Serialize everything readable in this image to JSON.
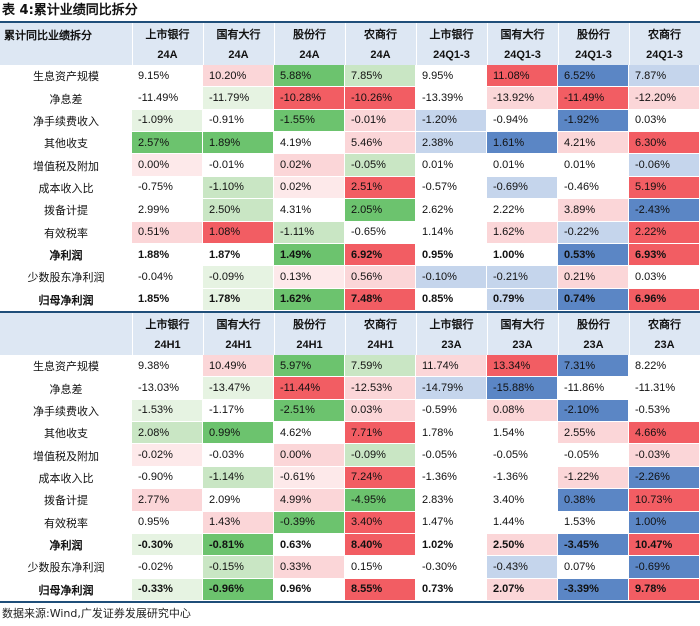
{
  "title": "表 4:累计业绩同比拆分",
  "corner_label": "累计同比业绩拆分",
  "source": "数据来源:Wind,广发证券发展研究中心",
  "colors": {
    "header_bg": "#dde7f3",
    "rule": "#1f4e79",
    "red": "#f25d63",
    "light_red": "#fbd6d8",
    "faint_red": "#fde9ea",
    "green": "#6cc36e",
    "light_green": "#c9e6c4",
    "faint_green": "#e6f3e2",
    "blue": "#5b86c5",
    "light_blue": "#c5d5ec",
    "white": "#ffffff"
  },
  "sections": [
    {
      "banks": [
        "上市银行",
        "国有大行",
        "股份行",
        "农商行",
        "上市银行",
        "国有大行",
        "股份行",
        "农商行"
      ],
      "periods": [
        "24A",
        "24A",
        "24A",
        "24A",
        "24Q1-3",
        "24Q1-3",
        "24Q1-3",
        "24Q1-3"
      ],
      "rows": [
        {
          "label": "生息资产规模",
          "bold": false,
          "values": [
            "9.15%",
            "10.20%",
            "5.88%",
            "7.85%",
            "9.95%",
            "11.08%",
            "6.52%",
            "7.87%"
          ],
          "colors": [
            "white",
            "light_red",
            "green",
            "light_green",
            "white",
            "red",
            "blue",
            "light_blue"
          ]
        },
        {
          "label": "净息差",
          "bold": false,
          "values": [
            "-11.49%",
            "-11.79%",
            "-10.28%",
            "-10.26%",
            "-13.39%",
            "-13.92%",
            "-11.49%",
            "-12.20%"
          ],
          "colors": [
            "white",
            "faint_green",
            "red",
            "red",
            "white",
            "light_red",
            "red",
            "light_red"
          ]
        },
        {
          "label": "净手续费收入",
          "bold": false,
          "values": [
            "-1.09%",
            "-0.91%",
            "-1.55%",
            "-0.01%",
            "-1.20%",
            "-0.94%",
            "-1.92%",
            "0.03%"
          ],
          "colors": [
            "faint_green",
            "white",
            "green",
            "light_red",
            "light_blue",
            "white",
            "blue",
            "white"
          ]
        },
        {
          "label": "其他收支",
          "bold": false,
          "values": [
            "2.57%",
            "1.89%",
            "4.19%",
            "5.46%",
            "2.38%",
            "1.61%",
            "4.21%",
            "6.30%"
          ],
          "colors": [
            "green",
            "green",
            "white",
            "light_red",
            "light_blue",
            "blue",
            "light_red",
            "red"
          ]
        },
        {
          "label": "增值税及附加",
          "bold": false,
          "values": [
            "0.00%",
            "-0.01%",
            "0.02%",
            "-0.05%",
            "0.01%",
            "0.01%",
            "0.01%",
            "-0.06%"
          ],
          "colors": [
            "faint_red",
            "white",
            "light_red",
            "light_green",
            "white",
            "white",
            "white",
            "light_blue"
          ]
        },
        {
          "label": "成本收入比",
          "bold": false,
          "values": [
            "-0.75%",
            "-1.10%",
            "0.02%",
            "2.51%",
            "-0.57%",
            "-0.69%",
            "-0.46%",
            "5.19%"
          ],
          "colors": [
            "white",
            "light_green",
            "faint_red",
            "red",
            "white",
            "light_blue",
            "white",
            "red"
          ]
        },
        {
          "label": "拨备计提",
          "bold": false,
          "values": [
            "2.99%",
            "2.50%",
            "4.31%",
            "2.05%",
            "2.62%",
            "2.22%",
            "3.89%",
            "-2.43%"
          ],
          "colors": [
            "white",
            "light_green",
            "white",
            "green",
            "white",
            "white",
            "light_red",
            "blue"
          ]
        },
        {
          "label": "有效税率",
          "bold": false,
          "values": [
            "0.51%",
            "1.08%",
            "-1.11%",
            "-0.65%",
            "1.14%",
            "1.62%",
            "-0.22%",
            "2.22%"
          ],
          "colors": [
            "light_red",
            "red",
            "light_green",
            "white",
            "white",
            "light_red",
            "light_blue",
            "red"
          ]
        },
        {
          "label": "净利润",
          "bold": true,
          "values": [
            "1.88%",
            "1.87%",
            "1.49%",
            "6.92%",
            "0.95%",
            "1.00%",
            "0.53%",
            "6.93%"
          ],
          "colors": [
            "white",
            "white",
            "green",
            "red",
            "white",
            "white",
            "blue",
            "red"
          ]
        },
        {
          "label": "少数股东净利润",
          "bold": false,
          "values": [
            "-0.04%",
            "-0.09%",
            "0.13%",
            "0.56%",
            "-0.10%",
            "-0.21%",
            "0.21%",
            "0.03%"
          ],
          "colors": [
            "white",
            "faint_green",
            "faint_red",
            "light_red",
            "light_blue",
            "light_blue",
            "light_red",
            "white"
          ]
        },
        {
          "label": "归母净利润",
          "bold": true,
          "values": [
            "1.85%",
            "1.78%",
            "1.62%",
            "7.48%",
            "0.85%",
            "0.79%",
            "0.74%",
            "6.96%"
          ],
          "colors": [
            "white",
            "faint_green",
            "green",
            "red",
            "white",
            "light_blue",
            "blue",
            "red"
          ]
        }
      ]
    },
    {
      "banks": [
        "上市银行",
        "国有大行",
        "股份行",
        "农商行",
        "上市银行",
        "国有大行",
        "股份行",
        "农商行"
      ],
      "periods": [
        "24H1",
        "24H1",
        "24H1",
        "24H1",
        "23A",
        "23A",
        "23A",
        "23A"
      ],
      "rows": [
        {
          "label": "生息资产规模",
          "bold": false,
          "values": [
            "9.38%",
            "10.49%",
            "5.97%",
            "7.59%",
            "11.74%",
            "13.34%",
            "7.31%",
            "8.22%"
          ],
          "colors": [
            "white",
            "light_red",
            "green",
            "light_green",
            "light_red",
            "red",
            "blue",
            "white"
          ]
        },
        {
          "label": "净息差",
          "bold": false,
          "values": [
            "-13.03%",
            "-13.47%",
            "-11.44%",
            "-12.53%",
            "-14.79%",
            "-15.88%",
            "-11.86%",
            "-11.31%"
          ],
          "colors": [
            "white",
            "faint_green",
            "red",
            "light_red",
            "light_blue",
            "blue",
            "white",
            "white"
          ]
        },
        {
          "label": "净手续费收入",
          "bold": false,
          "values": [
            "-1.53%",
            "-1.17%",
            "-2.51%",
            "0.03%",
            "-0.59%",
            "0.08%",
            "-2.10%",
            "-0.53%"
          ],
          "colors": [
            "faint_green",
            "white",
            "green",
            "light_red",
            "white",
            "light_red",
            "blue",
            "white"
          ]
        },
        {
          "label": "其他收支",
          "bold": false,
          "values": [
            "2.08%",
            "0.99%",
            "4.62%",
            "7.71%",
            "1.78%",
            "1.54%",
            "2.55%",
            "4.66%"
          ],
          "colors": [
            "light_green",
            "green",
            "white",
            "red",
            "white",
            "white",
            "light_red",
            "red"
          ]
        },
        {
          "label": "增值税及附加",
          "bold": false,
          "values": [
            "-0.02%",
            "-0.03%",
            "0.00%",
            "-0.09%",
            "-0.05%",
            "-0.05%",
            "-0.05%",
            "-0.03%"
          ],
          "colors": [
            "faint_red",
            "white",
            "light_red",
            "light_green",
            "white",
            "white",
            "white",
            "light_red"
          ]
        },
        {
          "label": "成本收入比",
          "bold": false,
          "values": [
            "-0.90%",
            "-1.14%",
            "-0.61%",
            "7.24%",
            "-1.36%",
            "-1.36%",
            "-1.22%",
            "-2.26%"
          ],
          "colors": [
            "white",
            "light_green",
            "faint_red",
            "red",
            "white",
            "white",
            "light_red",
            "blue"
          ]
        },
        {
          "label": "拨备计提",
          "bold": false,
          "values": [
            "2.77%",
            "2.09%",
            "4.99%",
            "-4.95%",
            "2.83%",
            "3.40%",
            "0.38%",
            "10.73%"
          ],
          "colors": [
            "light_red",
            "white",
            "light_red",
            "green",
            "white",
            "white",
            "blue",
            "red"
          ]
        },
        {
          "label": "有效税率",
          "bold": false,
          "values": [
            "0.95%",
            "1.43%",
            "-0.39%",
            "3.40%",
            "1.47%",
            "1.44%",
            "1.53%",
            "1.00%"
          ],
          "colors": [
            "white",
            "light_red",
            "green",
            "red",
            "white",
            "white",
            "white",
            "blue"
          ]
        },
        {
          "label": "净利润",
          "bold": true,
          "values": [
            "-0.30%",
            "-0.81%",
            "0.63%",
            "8.40%",
            "1.02%",
            "2.50%",
            "-3.45%",
            "10.47%"
          ],
          "colors": [
            "faint_green",
            "green",
            "white",
            "red",
            "white",
            "light_red",
            "blue",
            "red"
          ]
        },
        {
          "label": "少数股东净利润",
          "bold": false,
          "values": [
            "-0.02%",
            "-0.15%",
            "0.33%",
            "0.15%",
            "-0.30%",
            "-0.43%",
            "0.07%",
            "-0.69%"
          ],
          "colors": [
            "white",
            "light_green",
            "light_red",
            "white",
            "white",
            "light_blue",
            "white",
            "blue"
          ]
        },
        {
          "label": "归母净利润",
          "bold": true,
          "values": [
            "-0.33%",
            "-0.96%",
            "0.96%",
            "8.55%",
            "0.73%",
            "2.07%",
            "-3.39%",
            "9.78%"
          ],
          "colors": [
            "faint_green",
            "green",
            "white",
            "red",
            "white",
            "light_red",
            "blue",
            "red"
          ]
        }
      ]
    }
  ]
}
